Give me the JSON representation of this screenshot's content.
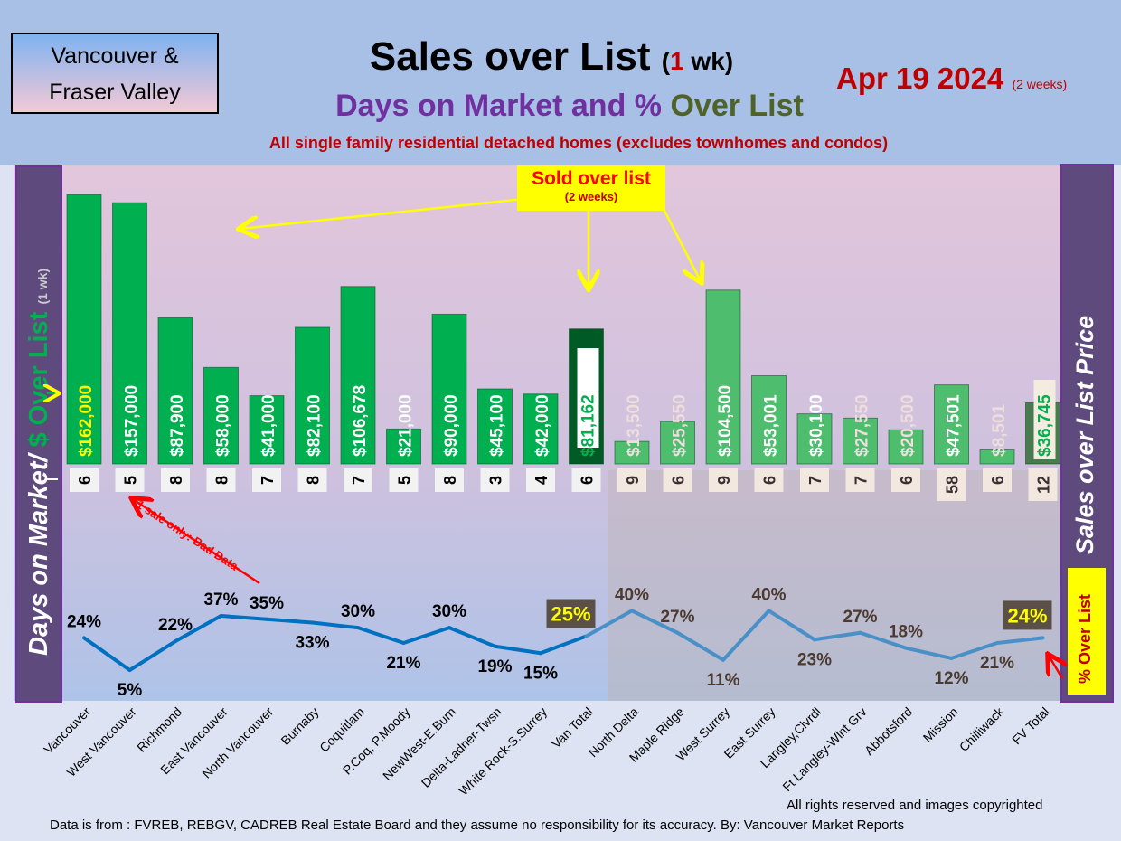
{
  "header": {
    "logo_line1": "Vancouver &",
    "logo_line2": "Fraser Valley",
    "title_main": "Sales over List",
    "title_paren_open": "(",
    "title_num": "1",
    "title_unit": " wk)",
    "subtitle_a": "Days on Market and % ",
    "subtitle_b": "Over List",
    "subtitle2": "All single family residential detached homes (excludes townhomes and condos)",
    "date": "Apr 19  2024",
    "date_note": "(2 weeks)"
  },
  "left_axis": {
    "label_a": "Days on Market/ ",
    "label_b": "$ Over List",
    "label_c": "(1 wk)"
  },
  "right_axis": {
    "label": "Sales over List Price",
    "pct_label": "% Over List"
  },
  "annotations": {
    "sold_over": "Sold over list",
    "sold_over_note": "(2 weeks)",
    "bad_data": "1 sale only: Bad Data"
  },
  "footer": {
    "rights": "All rights reserved and  images copyrighted",
    "source": "Data is from : FVREB, REBGV, CADREB Real Estate Board and they assume no responsibility for its accuracy. By: Vancouver Market Reports"
  },
  "colors": {
    "bar": "#00b050",
    "bar_fv": "#4ebe6e",
    "total_bar": "#005a25",
    "line": "#0070c0",
    "line_fv": "#4a90c8"
  },
  "chart_data": {
    "type": "bar+line",
    "categories": [
      "Vancouver",
      "West Vancouver",
      "Richmond",
      "East Vancouver",
      "North Vancouver",
      "Burnaby",
      "Coquitlam",
      "P.Coq, P.Moody",
      "NewWest-E.Burn",
      "Delta-Ladner-Twsn",
      "White Rock-S.Surrey",
      "Van Total",
      "North Delta",
      "Maple Ridge",
      "West Surrey",
      "East Surrey",
      "Langley,Clvrdl",
      "Ft Langley-Wlnt Grv",
      "Abbotsford",
      "Mission",
      "Chilliwack",
      "FV Total"
    ],
    "series": [
      {
        "name": "$ Over List",
        "type": "bar",
        "values": [
          162000,
          157000,
          87900,
          58000,
          41000,
          82100,
          106678,
          21000,
          90000,
          45100,
          42000,
          81162,
          13500,
          25550,
          104500,
          53001,
          30100,
          27550,
          20500,
          47501,
          8501,
          36745
        ],
        "labels": [
          "$162,000",
          "$157,000",
          "$87,900",
          "$58,000",
          "$41,000",
          "$82,100",
          "$106,678",
          "$21,000",
          "$90,000",
          "$45,100",
          "$42,000",
          "$81,162",
          "$13,500",
          "$25,550",
          "$104,500",
          "$53,001",
          "$30,100",
          "$27,550",
          "$20,500",
          "$47,501",
          "$8,501",
          "$36,745"
        ]
      },
      {
        "name": "Days on Market",
        "type": "label",
        "values": [
          6,
          5,
          8,
          8,
          7,
          8,
          7,
          5,
          8,
          3,
          4,
          6,
          9,
          6,
          9,
          6,
          7,
          7,
          6,
          58,
          6,
          12
        ]
      },
      {
        "name": "% Over List",
        "type": "line",
        "values": [
          24,
          5,
          22,
          37,
          35,
          33,
          30,
          21,
          30,
          19,
          15,
          25,
          40,
          27,
          11,
          40,
          23,
          27,
          18,
          12,
          21,
          24
        ],
        "labels": [
          "24%",
          "5%",
          "22%",
          "37%",
          "35%",
          "33%",
          "30%",
          "21%",
          "30%",
          "19%",
          "15%",
          "25%",
          "40%",
          "27%",
          "11%",
          "40%",
          "23%",
          "27%",
          "18%",
          "12%",
          "21%",
          "24%"
        ]
      }
    ],
    "ylim_bar": [
      0,
      162000
    ],
    "ylim_line": [
      0,
      45
    ]
  }
}
